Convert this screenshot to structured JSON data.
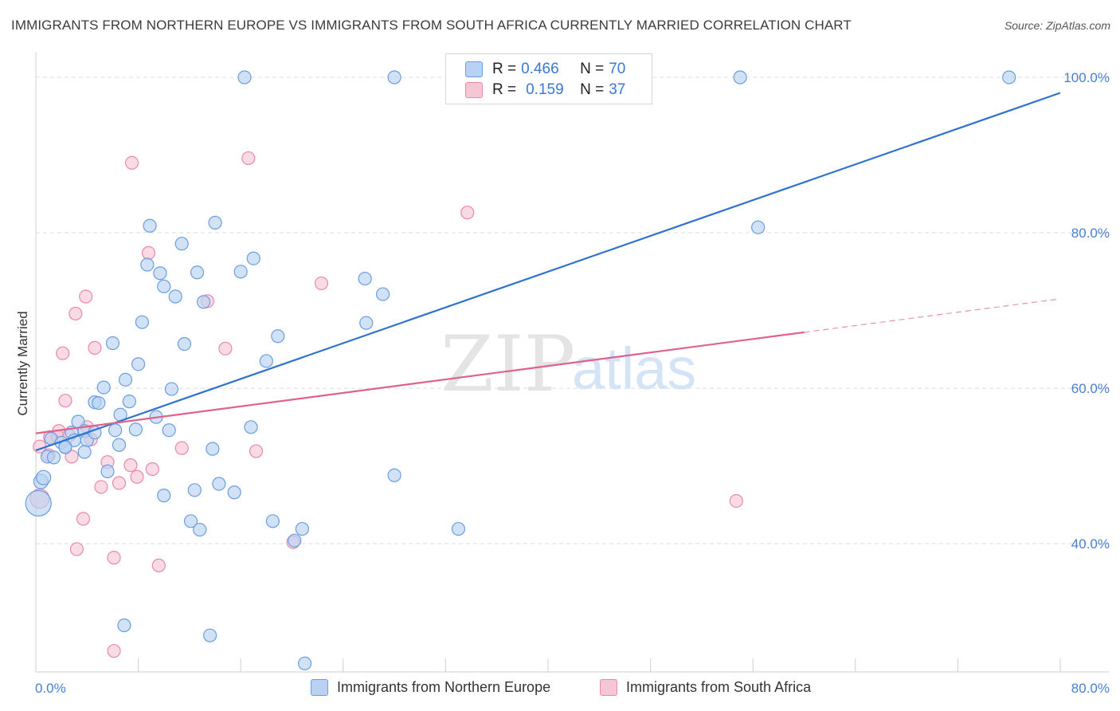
{
  "title": "IMMIGRANTS FROM NORTHERN EUROPE VS IMMIGRANTS FROM SOUTH AFRICA CURRENTLY MARRIED CORRELATION CHART",
  "source": "Source: ZipAtlas.com",
  "watermark": {
    "zip": "ZIP",
    "atlas": "atlas"
  },
  "colors": {
    "blue_fill": "#b9d2f3",
    "blue_stroke": "#6a9ee0",
    "blue_line": "#2f72d0",
    "pink_fill": "#f7c6d5",
    "pink_stroke": "#e88aa8",
    "pink_line": "#e0628c",
    "tick_text": "#4a7fd0",
    "grid": "#dddddd"
  },
  "legend": {
    "rows": [
      {
        "r_label": "R =",
        "r_value": "0.466",
        "n_label": "N =",
        "n_value": "70"
      },
      {
        "r_label": "R =",
        "r_value": "0.159",
        "n_label": "N =",
        "n_value": "37"
      }
    ]
  },
  "bottom_legend": {
    "blue": "Immigrants from Northern Europe",
    "pink": "Immigrants from South Africa"
  },
  "chart_data": {
    "type": "scatter",
    "title": "IMMIGRANTS FROM NORTHERN EUROPE VS IMMIGRANTS FROM SOUTH AFRICA CURRENTLY MARRIED CORRELATION CHART",
    "xlabel": "",
    "ylabel": "Currently Married",
    "xlim": [
      0,
      80
    ],
    "ylim": [
      23.5,
      104
    ],
    "x_tick_labels": [
      "0.0%",
      "80.0%"
    ],
    "y_ticks": [
      40,
      60,
      80,
      100
    ],
    "y_tick_labels": [
      "40.0%",
      "60.0%",
      "80.0%",
      "100.0%"
    ],
    "grid": true,
    "series": [
      {
        "name": "Immigrants from Northern Europe",
        "color": "blue",
        "r": 0.466,
        "n": 70,
        "trend": {
          "x0": 0,
          "y0": 52.0,
          "x1": 80,
          "y1": 98.0
        },
        "points": [
          [
            0.2,
            45.2,
            16
          ],
          [
            0.4,
            48.0,
            9
          ],
          [
            0.6,
            48.5,
            9
          ],
          [
            0.9,
            51.2,
            8
          ],
          [
            1.4,
            51.1,
            8
          ],
          [
            1.2,
            53.5,
            8
          ],
          [
            2.0,
            53.0,
            8
          ],
          [
            2.3,
            52.5,
            8
          ],
          [
            2.8,
            54.3,
            8
          ],
          [
            3.0,
            53.3,
            8
          ],
          [
            3.3,
            55.7,
            8
          ],
          [
            3.8,
            54.5,
            8
          ],
          [
            4.0,
            53.3,
            8
          ],
          [
            3.8,
            51.8,
            8
          ],
          [
            4.6,
            54.3,
            8
          ],
          [
            4.6,
            58.2,
            8
          ],
          [
            4.9,
            58.1,
            8
          ],
          [
            5.3,
            60.1,
            8
          ],
          [
            5.6,
            49.3,
            8
          ],
          [
            6.0,
            65.8,
            8
          ],
          [
            6.2,
            54.6,
            8
          ],
          [
            6.5,
            52.7,
            8
          ],
          [
            6.6,
            56.6,
            8
          ],
          [
            7.0,
            61.1,
            8
          ],
          [
            7.3,
            58.3,
            8
          ],
          [
            7.8,
            54.7,
            8
          ],
          [
            8.0,
            63.1,
            8
          ],
          [
            8.3,
            68.5,
            8
          ],
          [
            8.7,
            75.9,
            8
          ],
          [
            8.9,
            80.9,
            8
          ],
          [
            9.4,
            56.3,
            8
          ],
          [
            9.7,
            74.8,
            8
          ],
          [
            10.0,
            73.1,
            8
          ],
          [
            10.0,
            46.2,
            8
          ],
          [
            10.4,
            54.6,
            8
          ],
          [
            10.6,
            59.9,
            8
          ],
          [
            10.9,
            71.8,
            8
          ],
          [
            11.4,
            78.6,
            8
          ],
          [
            11.6,
            65.7,
            8
          ],
          [
            12.1,
            42.9,
            8
          ],
          [
            12.4,
            46.9,
            8
          ],
          [
            12.6,
            74.9,
            8
          ],
          [
            12.8,
            41.8,
            8
          ],
          [
            13.1,
            71.1,
            8
          ],
          [
            13.6,
            28.2,
            8
          ],
          [
            13.8,
            52.2,
            8
          ],
          [
            14.0,
            81.3,
            8
          ],
          [
            14.3,
            47.7,
            8
          ],
          [
            15.5,
            46.6,
            8
          ],
          [
            16.0,
            75.0,
            8
          ],
          [
            16.3,
            100.0,
            8
          ],
          [
            16.8,
            55.0,
            8
          ],
          [
            17.0,
            76.7,
            8
          ],
          [
            18.0,
            63.5,
            8
          ],
          [
            18.5,
            42.9,
            8
          ],
          [
            18.9,
            66.7,
            8
          ],
          [
            20.2,
            40.4,
            8
          ],
          [
            20.8,
            41.9,
            8
          ],
          [
            21.0,
            24.6,
            8
          ],
          [
            25.7,
            74.1,
            8
          ],
          [
            25.8,
            68.4,
            8
          ],
          [
            27.1,
            72.1,
            8
          ],
          [
            28.0,
            100.0,
            8
          ],
          [
            28.0,
            48.8,
            8
          ],
          [
            33.0,
            41.9,
            8
          ],
          [
            55.0,
            100.0,
            8
          ],
          [
            56.4,
            80.7,
            8
          ],
          [
            76.0,
            100.0,
            8
          ],
          [
            6.9,
            29.5,
            8
          ],
          [
            2.3,
            52.4,
            8
          ]
        ]
      },
      {
        "name": "Immigrants from South Africa",
        "color": "pink",
        "r": 0.159,
        "n": 37,
        "trend": {
          "x0": 0,
          "y0": 54.2,
          "x1": 60,
          "y1": 67.2,
          "dash_x1": 80,
          "dash_y1": 71.5
        },
        "points": [
          [
            0.3,
            45.8,
            12
          ],
          [
            0.3,
            52.5,
            8
          ],
          [
            1.0,
            51.4,
            8
          ],
          [
            1.1,
            53.7,
            8
          ],
          [
            1.7,
            53.8,
            8
          ],
          [
            1.8,
            54.5,
            8
          ],
          [
            2.1,
            64.5,
            8
          ],
          [
            2.3,
            58.4,
            8
          ],
          [
            2.6,
            53.9,
            8
          ],
          [
            3.1,
            69.6,
            8
          ],
          [
            3.2,
            39.3,
            8
          ],
          [
            3.7,
            43.2,
            8
          ],
          [
            3.9,
            71.8,
            8
          ],
          [
            4.3,
            53.4,
            8
          ],
          [
            4.6,
            65.2,
            8
          ],
          [
            5.1,
            47.3,
            8
          ],
          [
            5.6,
            50.5,
            8
          ],
          [
            6.1,
            38.2,
            8
          ],
          [
            6.1,
            26.2,
            8
          ],
          [
            6.5,
            47.8,
            8
          ],
          [
            7.4,
            50.1,
            8
          ],
          [
            7.5,
            89.0,
            8
          ],
          [
            7.9,
            48.6,
            8
          ],
          [
            8.8,
            77.4,
            8
          ],
          [
            9.1,
            49.6,
            8
          ],
          [
            9.6,
            37.2,
            8
          ],
          [
            11.4,
            52.3,
            8
          ],
          [
            13.4,
            71.2,
            8
          ],
          [
            14.8,
            65.1,
            8
          ],
          [
            16.6,
            89.6,
            8
          ],
          [
            17.2,
            51.9,
            8
          ],
          [
            20.1,
            40.2,
            8
          ],
          [
            22.3,
            73.5,
            8
          ],
          [
            33.7,
            82.6,
            8
          ],
          [
            54.7,
            45.5,
            8
          ],
          [
            4.0,
            55.0,
            8
          ],
          [
            2.8,
            51.2,
            8
          ]
        ]
      }
    ]
  }
}
